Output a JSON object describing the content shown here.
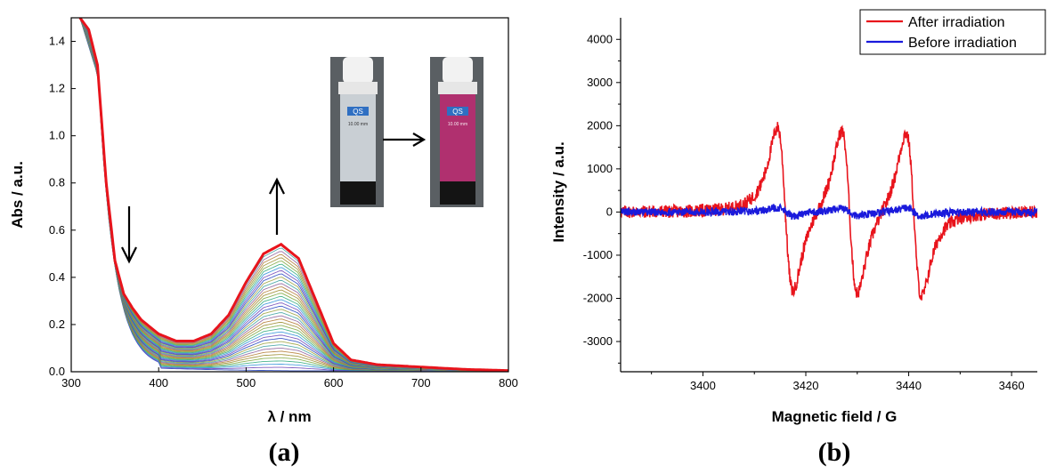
{
  "chart_data": [
    {
      "type": "line",
      "panel_label": "(a)",
      "xlabel": "λ / nm",
      "ylabel": "Abs / a.u.",
      "xlim": [
        300,
        800
      ],
      "ylim": [
        0,
        1.5
      ],
      "xticks": [
        "300",
        "400",
        "500",
        "600",
        "700",
        "800"
      ],
      "yticks": [
        "0.0",
        "0.2",
        "0.4",
        "0.6",
        "0.8",
        "1.0",
        "1.2",
        "1.4"
      ],
      "grid": false,
      "series_count": 40,
      "final_series": {
        "color": "#e8141c",
        "x": [
          310,
          320,
          330,
          340,
          350,
          360,
          370,
          380,
          400,
          420,
          440,
          460,
          480,
          500,
          520,
          540,
          560,
          580,
          600,
          620,
          650,
          700,
          750,
          800
        ],
        "values": [
          1.5,
          1.45,
          1.3,
          0.8,
          0.47,
          0.33,
          0.27,
          0.22,
          0.16,
          0.13,
          0.13,
          0.16,
          0.24,
          0.38,
          0.5,
          0.54,
          0.48,
          0.3,
          0.12,
          0.05,
          0.03,
          0.02,
          0.01,
          0.005
        ]
      },
      "peak_x": 540,
      "arrows": [
        {
          "x": 365,
          "direction": "down"
        },
        {
          "x": 540,
          "direction": "up"
        }
      ],
      "inset": {
        "description_words": [
          "QS",
          "10.00 mm"
        ],
        "left_color": "#c9cfd4",
        "right_color": "#b0306f"
      }
    },
    {
      "type": "line",
      "panel_label": "(b)",
      "xlabel": "Magnetic field / G",
      "ylabel": "Intensity / a.u.",
      "xlim": [
        3384,
        3465
      ],
      "ylim": [
        -3700,
        4500
      ],
      "xticks": [
        "3400",
        "3420",
        "3440",
        "3460"
      ],
      "yticks": [
        "4000",
        "3000",
        "2000",
        "1000",
        "0",
        "-1000",
        "-2000",
        "-3000"
      ],
      "legend": "top-right",
      "series": [
        {
          "name": "After irradiation",
          "color": "#e8141c",
          "lines": [
            3416,
            3428.5,
            3441
          ],
          "amplitude": 3400
        },
        {
          "name": "Before irradiation",
          "color": "#1a1adc",
          "lines": [
            3416,
            3428.5,
            3441
          ],
          "amplitude": 170
        }
      ]
    }
  ]
}
